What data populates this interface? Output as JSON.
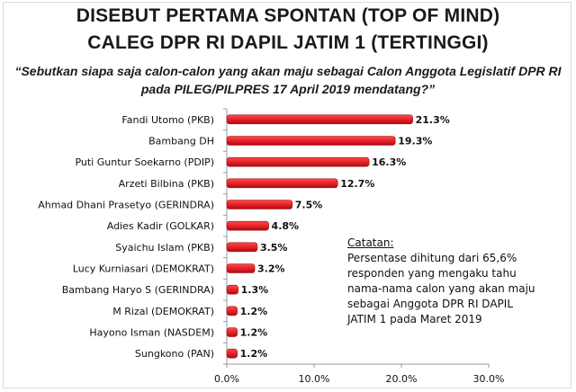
{
  "title_line1": "DISEBUT PERTAMA SPONTAN (TOP OF MIND)",
  "title_line2": "CALEG DPR RI DAPIL JATIM 1 (TERTINGGI)",
  "question_line1": "“Sebutkan siapa saja calon-calon yang akan maju sebagai Calon Anggota Legislatif DPR RI",
  "question_line2": "pada PILEG/PILPRES  17 April 2019 mendatang?”",
  "note": {
    "title": "Catatan:",
    "lines": [
      "Persentase dihitung dari 65,6%",
      "responden yang mengaku tahu",
      "nama-nama calon yang akan maju",
      "sebagai Anggota DPR RI DAPIL",
      "JATIM 1 pada Maret 2019"
    ]
  },
  "colors": {
    "bar": "#e31e24",
    "bar_dark": "#a50f14",
    "axis": "#9a9a9a"
  },
  "chart_data": {
    "type": "bar",
    "orientation": "horizontal",
    "categories": [
      "Fandi Utomo (PKB)",
      "Bambang DH",
      "Puti Guntur Soekarno (PDIP)",
      "Arzeti Bilbina (PKB)",
      "Ahmad Dhani Prasetyo (GERINDRA)",
      "Adies Kadir (GOLKAR)",
      "Syaichu Islam (PKB)",
      "Lucy Kurniasari (DEMOKRAT)",
      "Bambang Haryo S (GERINDRA)",
      "M Rizal (DEMOKRAT)",
      "Hayono Isman (NASDEM)",
      "Sungkono (PAN)"
    ],
    "values": [
      21.3,
      19.3,
      16.3,
      12.7,
      7.5,
      4.8,
      3.5,
      3.2,
      1.3,
      1.2,
      1.2,
      1.2
    ],
    "value_labels": [
      "21.3%",
      "19.3%",
      "16.3%",
      "12.7%",
      "7.5%",
      "4.8%",
      "3.5%",
      "3.2%",
      "1.3%",
      "1.2%",
      "1.2%",
      "1.2%"
    ],
    "xlim": [
      0,
      30
    ],
    "xticks": [
      0,
      10,
      20,
      30
    ],
    "xtick_labels": [
      "0.0%",
      "10.0%",
      "20.0%",
      "30.0%"
    ],
    "grid": false,
    "legend": "none"
  }
}
